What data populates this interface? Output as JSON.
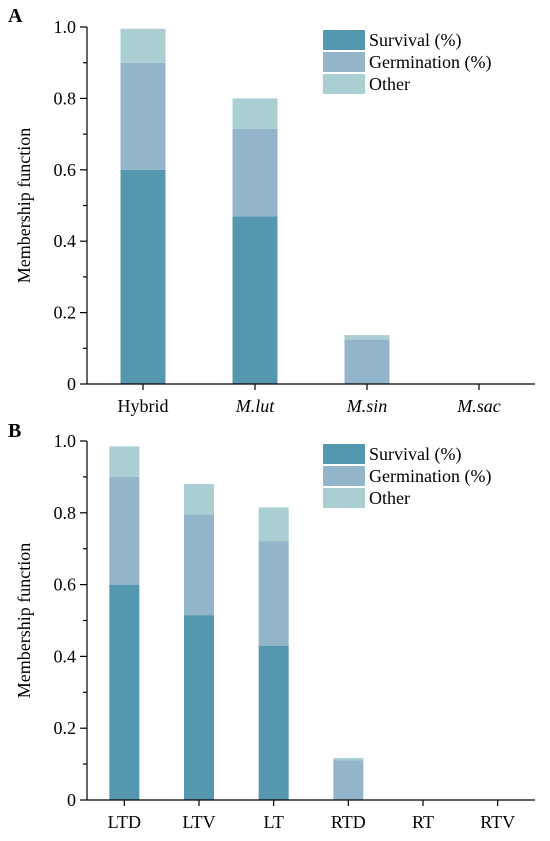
{
  "chart_data": [
    {
      "panel": "A",
      "type": "bar",
      "stacked": true,
      "ylabel": "Membership function",
      "ylim": [
        0,
        1.0
      ],
      "yticks": [
        "0",
        "0.2",
        "0.4",
        "0.6",
        "0.8",
        "1.0"
      ],
      "categories": [
        "Hybrid",
        "M.lut",
        "M.sin",
        "M.sac"
      ],
      "italic_categories": [
        false,
        true,
        true,
        true
      ],
      "series": [
        {
          "name": "Survival (%)",
          "color": "#5597ae",
          "values": [
            0.6,
            0.47,
            0.0,
            0.0
          ]
        },
        {
          "name": "Germination (%)",
          "color": "#93b5c9",
          "values": [
            0.3,
            0.245,
            0.125,
            0.0
          ]
        },
        {
          "name": "Other",
          "color": "#aacfd2",
          "values": [
            0.095,
            0.085,
            0.012,
            0.0
          ]
        }
      ],
      "legend_position": "top-right"
    },
    {
      "panel": "B",
      "type": "bar",
      "stacked": true,
      "ylabel": "Membership function",
      "ylim": [
        0,
        1.0
      ],
      "yticks": [
        "0",
        "0.2",
        "0.4",
        "0.6",
        "0.8",
        "1.0"
      ],
      "categories": [
        "LTD",
        "LTV",
        "LT",
        "RTD",
        "RT",
        "RTV"
      ],
      "italic_categories": [
        false,
        false,
        false,
        false,
        false,
        false
      ],
      "series": [
        {
          "name": "Survival (%)",
          "color": "#5597ae",
          "values": [
            0.6,
            0.515,
            0.43,
            0.0,
            0.0,
            0.0
          ]
        },
        {
          "name": "Germination (%)",
          "color": "#93b5c9",
          "values": [
            0.3,
            0.28,
            0.29,
            0.11,
            0.0,
            0.0
          ]
        },
        {
          "name": "Other",
          "color": "#aacfd2",
          "values": [
            0.085,
            0.085,
            0.095,
            0.007,
            0.0,
            0.0
          ]
        }
      ],
      "legend_position": "top-right"
    }
  ]
}
